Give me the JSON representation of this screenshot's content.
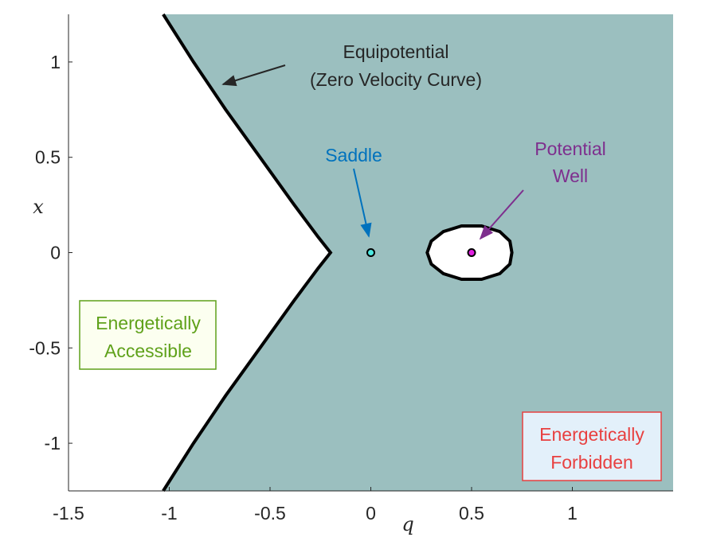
{
  "chart_data": {
    "type": "contour",
    "xlabel": "q",
    "ylabel": "x",
    "xlim": [
      -1.5,
      1.5
    ],
    "ylim": [
      -1.25,
      1.25
    ],
    "x_ticks": [
      -1.5,
      -1,
      -0.5,
      0,
      0.5,
      1
    ],
    "x_tick_labels": [
      "-1.5",
      "-1",
      "-0.5",
      "0",
      "0.5",
      "1"
    ],
    "y_ticks": [
      1,
      0.5,
      0,
      -0.5,
      -1
    ],
    "y_tick_labels": [
      "1",
      "0.5",
      "0",
      "-0.5",
      "-1"
    ],
    "forbidden_color": "#9bbfbf",
    "accessible_color": "#ffffff",
    "curves": [
      {
        "name": "equipotential-left",
        "points": [
          [
            -1.03,
            1.25
          ],
          [
            -0.88,
            1.0
          ],
          [
            -0.72,
            0.75
          ],
          [
            -0.55,
            0.5
          ],
          [
            -0.38,
            0.25
          ],
          [
            -0.26,
            0.08
          ],
          [
            -0.2,
            0.0
          ],
          [
            -0.26,
            -0.08
          ],
          [
            -0.38,
            -0.25
          ],
          [
            -0.55,
            -0.5
          ],
          [
            -0.72,
            -0.75
          ],
          [
            -0.88,
            -1.0
          ],
          [
            -1.03,
            -1.25
          ]
        ]
      },
      {
        "name": "equipotential-well",
        "points": [
          [
            0.28,
            0.0
          ],
          [
            0.3,
            0.06
          ],
          [
            0.36,
            0.11
          ],
          [
            0.45,
            0.14
          ],
          [
            0.55,
            0.14
          ],
          [
            0.64,
            0.11
          ],
          [
            0.69,
            0.06
          ],
          [
            0.7,
            0.0
          ],
          [
            0.69,
            -0.06
          ],
          [
            0.64,
            -0.11
          ],
          [
            0.55,
            -0.14
          ],
          [
            0.45,
            -0.14
          ],
          [
            0.36,
            -0.11
          ],
          [
            0.3,
            -0.06
          ],
          [
            0.28,
            0.0
          ]
        ]
      }
    ],
    "points": [
      {
        "name": "saddle",
        "q": 0,
        "x": 0,
        "color": "#4de8e0"
      },
      {
        "name": "well",
        "q": 0.5,
        "x": 0,
        "color": "#e020e0"
      }
    ],
    "annotations": {
      "equipotential": {
        "line1": "Equipotential",
        "line2": "(Zero Velocity Curve)",
        "color": "#262626"
      },
      "saddle": {
        "text": "Saddle",
        "color": "#0072bd"
      },
      "well": {
        "line1": "Potential",
        "line2": "Well",
        "color": "#7e2f8e"
      },
      "accessible": {
        "line1": "Energetically",
        "line2": "Accessible",
        "color": "#5fa11a",
        "bg": "#fcfff0",
        "border": "#5fa11a"
      },
      "forbidden": {
        "line1": "Energetically",
        "line2": "Forbidden",
        "color": "#e84040",
        "bg": "#e3f0fa",
        "border": "#e84040"
      }
    }
  }
}
